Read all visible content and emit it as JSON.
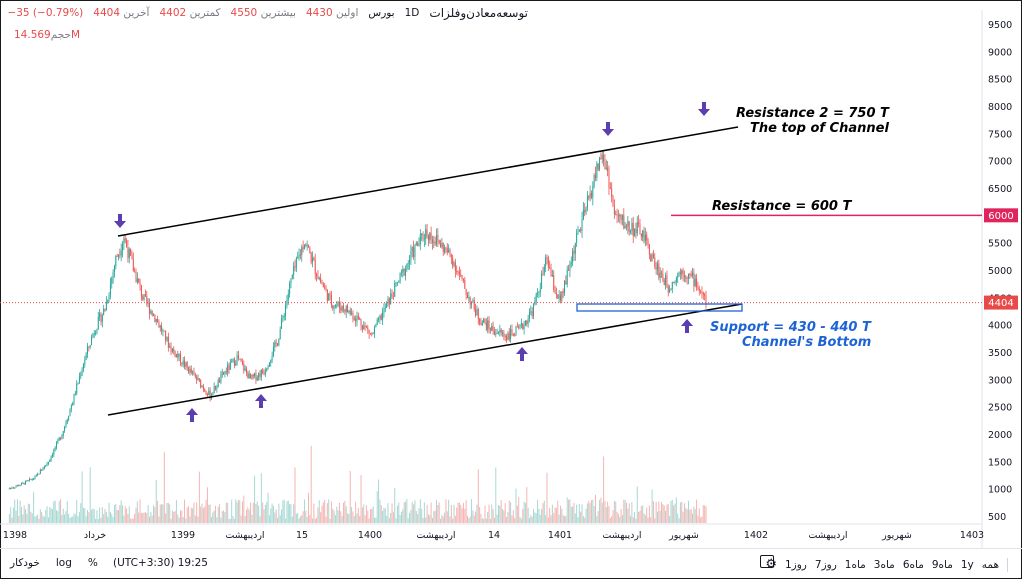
{
  "header": {
    "symbol": "توسعه‌معادن‌وفلزات",
    "interval": "1D",
    "exchange": "بورس",
    "open_label": "اولین",
    "open": "4430",
    "high_label": "بیشترین",
    "high": "4550",
    "low_label": "کمترین",
    "low": "4402",
    "close_label": "آخرین",
    "close": "4404",
    "change": "−35 (−0.79%)",
    "volume_label": "حجم",
    "volume": "14.569M"
  },
  "colors": {
    "up": "#26a69a",
    "down": "#ef5350",
    "volume_up": "#a8d8d3",
    "volume_down": "#f5b5b3",
    "channel": "#000000",
    "resistance": "#e0245e",
    "support": "#1e63d6",
    "arrow": "#5b3fb0",
    "price_tag": "#e84a4a"
  },
  "chart_data": {
    "type": "candlestick",
    "y_axis": {
      "min": 500,
      "max": 9500,
      "ticks": [
        500,
        1000,
        1500,
        2000,
        2500,
        3000,
        3500,
        4000,
        4500,
        5000,
        5500,
        6000,
        6500,
        7000,
        7500,
        8000,
        8500,
        9000,
        9500
      ]
    },
    "x_axis_labels": [
      "1398",
      "خرداد",
      "1399",
      "اردیبهشت",
      "15",
      "1400",
      "اردیبهشت",
      "14",
      "1401",
      "اردیبهشت",
      "شهریور",
      "1402",
      "اردیبهشت",
      "شهریور",
      "1403"
    ],
    "price_tags": {
      "resistance": "6000",
      "last": "4404"
    },
    "price_path": [
      [
        0,
        1000
      ],
      [
        10,
        1080
      ],
      [
        20,
        1200
      ],
      [
        30,
        1500
      ],
      [
        40,
        2000
      ],
      [
        48,
        2600
      ],
      [
        56,
        3300
      ],
      [
        64,
        3900
      ],
      [
        72,
        4300
      ],
      [
        80,
        5200
      ],
      [
        86,
        5600
      ],
      [
        92,
        5100
      ],
      [
        100,
        4500
      ],
      [
        110,
        4100
      ],
      [
        120,
        3600
      ],
      [
        130,
        3300
      ],
      [
        140,
        3000
      ],
      [
        150,
        2700
      ],
      [
        160,
        3100
      ],
      [
        170,
        3400
      ],
      [
        180,
        3000
      ],
      [
        190,
        3150
      ],
      [
        200,
        3700
      ],
      [
        210,
        4800
      ],
      [
        220,
        5550
      ],
      [
        230,
        4900
      ],
      [
        240,
        4400
      ],
      [
        250,
        4300
      ],
      [
        260,
        4100
      ],
      [
        270,
        3800
      ],
      [
        280,
        4300
      ],
      [
        290,
        4800
      ],
      [
        300,
        5300
      ],
      [
        310,
        5700
      ],
      [
        320,
        5500
      ],
      [
        330,
        5200
      ],
      [
        340,
        4600
      ],
      [
        350,
        4100
      ],
      [
        360,
        3900
      ],
      [
        370,
        3800
      ],
      [
        380,
        3900
      ],
      [
        390,
        4300
      ],
      [
        400,
        5200
      ],
      [
        405,
        4700
      ],
      [
        410,
        4400
      ],
      [
        420,
        5400
      ],
      [
        430,
        6200
      ],
      [
        440,
        7100
      ],
      [
        445,
        6800
      ],
      [
        450,
        6000
      ],
      [
        460,
        5800
      ],
      [
        470,
        5700
      ],
      [
        480,
        5100
      ],
      [
        490,
        4700
      ],
      [
        500,
        5000
      ],
      [
        510,
        4800
      ],
      [
        518,
        4404
      ]
    ],
    "annotations": [
      {
        "text": "Resistance 2 = 750 T",
        "value": 7500
      },
      {
        "text": "The top of Channel"
      },
      {
        "text": "Resistance = 600 T",
        "value": 6000
      },
      {
        "text": "Support = 430 - 440 T",
        "value": 4350
      },
      {
        "text": "Channel's Bottom"
      }
    ]
  },
  "footer": {
    "auto": "خودکار",
    "log": "log",
    "percent": "%",
    "timezone": "(UTC+3:30) 19:25",
    "ranges": [
      "همه",
      "1y",
      "9ماه",
      "6ماه",
      "3ماه",
      "1ماه",
      "7روز",
      "1روز"
    ]
  }
}
